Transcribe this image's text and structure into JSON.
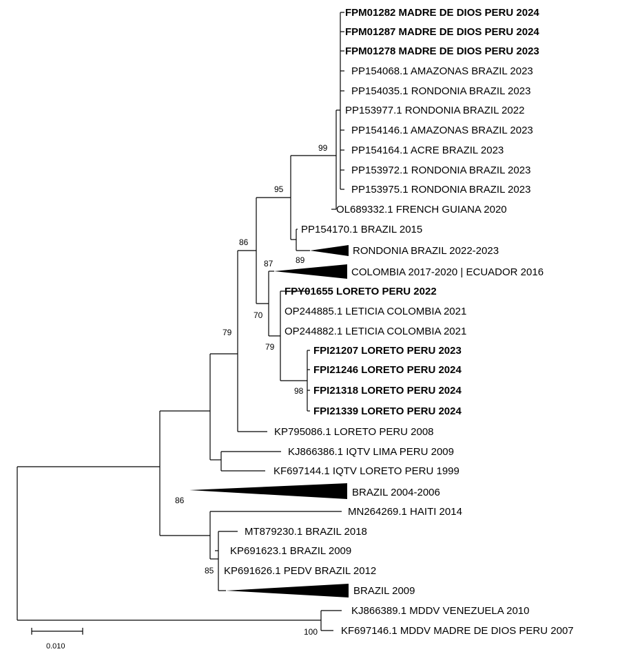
{
  "tree": {
    "taxa": [
      {
        "id": "t1",
        "label": "FPM01282 MADRE DE DIOS PERU 2024",
        "bold": true
      },
      {
        "id": "t2",
        "label": "FPM01287 MADRE DE DIOS PERU 2024",
        "bold": true
      },
      {
        "id": "t3",
        "label": "FPM01278 MADRE DE DIOS PERU 2023",
        "bold": true
      },
      {
        "id": "t4",
        "label": "PP154068.1 AMAZONAS BRAZIL 2023",
        "bold": false
      },
      {
        "id": "t5",
        "label": "PP154035.1 RONDONIA BRAZIL 2023",
        "bold": false
      },
      {
        "id": "t6",
        "label": "PP153977.1 RONDONIA BRAZIL 2022",
        "bold": false
      },
      {
        "id": "t7",
        "label": "PP154146.1 AMAZONAS BRAZIL 2023",
        "bold": false
      },
      {
        "id": "t8",
        "label": "PP154164.1 ACRE BRAZIL 2023",
        "bold": false
      },
      {
        "id": "t9",
        "label": "PP153972.1 RONDONIA BRAZIL 2023",
        "bold": false
      },
      {
        "id": "t10",
        "label": "PP153975.1 RONDONIA BRAZIL 2023",
        "bold": false
      },
      {
        "id": "t11",
        "label": "OL689332.1 FRENCH GUIANA 2020",
        "bold": false
      },
      {
        "id": "t12",
        "label": "PP154170.1 BRAZIL 2015",
        "bold": false
      },
      {
        "id": "t13",
        "label": "RONDONIA BRAZIL 2022-2023",
        "bold": false,
        "collapsed": true
      },
      {
        "id": "t14",
        "label": "COLOMBIA 2017-2020 | ECUADOR 2016",
        "bold": false,
        "collapsed": true
      },
      {
        "id": "t15",
        "label": "FPY01655 LORETO PERU 2022",
        "bold": true
      },
      {
        "id": "t16",
        "label": "OP244885.1 LETICIA COLOMBIA 2021",
        "bold": false
      },
      {
        "id": "t17",
        "label": "OP244882.1 LETICIA COLOMBIA 2021",
        "bold": false
      },
      {
        "id": "t18",
        "label": "FPI21207 LORETO PERU 2023",
        "bold": true
      },
      {
        "id": "t19",
        "label": "FPI21246 LORETO PERU 2024",
        "bold": true
      },
      {
        "id": "t20",
        "label": "FPI21318 LORETO PERU 2024",
        "bold": true
      },
      {
        "id": "t21",
        "label": "FPI21339 LORETO PERU 2024",
        "bold": true
      },
      {
        "id": "t22",
        "label": "KP795086.1 LORETO PERU 2008",
        "bold": false
      },
      {
        "id": "t23",
        "label": "KJ866386.1 IQTV LIMA PERU 2009",
        "bold": false
      },
      {
        "id": "t24",
        "label": "KF697144.1 IQTV LORETO PERU 1999",
        "bold": false
      },
      {
        "id": "t25",
        "label": "BRAZIL 2004-2006",
        "bold": false,
        "collapsed": true
      },
      {
        "id": "t26",
        "label": "MN264269.1 HAITI 2014",
        "bold": false
      },
      {
        "id": "t27",
        "label": "MT879230.1 BRAZIL 2018",
        "bold": false
      },
      {
        "id": "t28",
        "label": "KP691623.1 BRAZIL 2009",
        "bold": false
      },
      {
        "id": "t29",
        "label": "KP691626.1 PEDV BRAZIL 2012",
        "bold": false
      },
      {
        "id": "t30",
        "label": "BRAZIL 2009",
        "bold": false,
        "collapsed": true
      },
      {
        "id": "t31",
        "label": "KJ866389.1 MDDV VENEZUELA 2010",
        "bold": false
      },
      {
        "id": "t32",
        "label": "KF697146.1 MDDV MADRE DE DIOS PERU 2007",
        "bold": false
      }
    ],
    "bootstrap": [
      "99",
      "95",
      "86",
      "89",
      "87",
      "70",
      "79",
      "98",
      "79",
      "86",
      "85",
      "100"
    ],
    "scale_bar": {
      "label": "0.010"
    }
  }
}
